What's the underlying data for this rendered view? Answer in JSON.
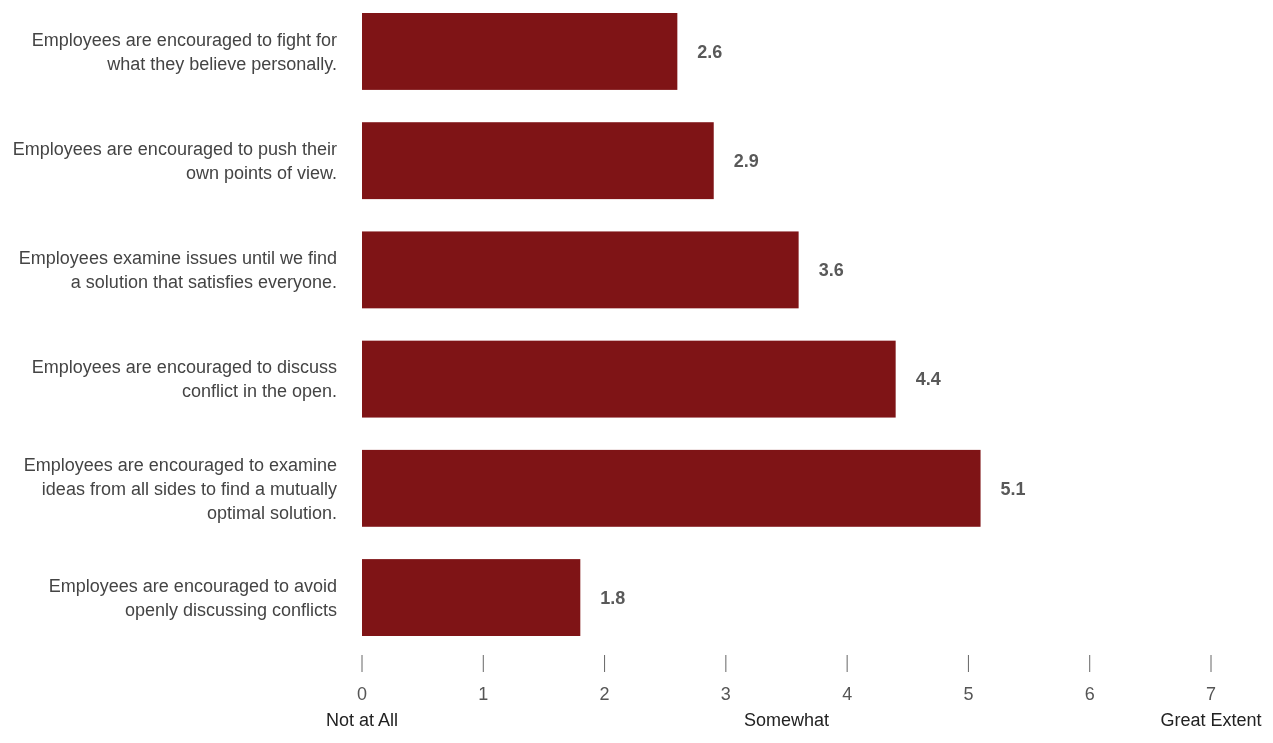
{
  "chart_data": {
    "type": "bar",
    "orientation": "horizontal",
    "categories": [
      "Employees are encouraged to fight for what they believe personally.",
      "Employees are encouraged to push their own points of view.",
      "Employees examine issues until we find a solution that satisfies everyone.",
      "Employees are encouraged to discuss conflict in the open.",
      "Employees are encouraged to examine ideas from all sides to find a mutually optimal solution.",
      "Employees are encouraged to avoid openly discussing conflicts"
    ],
    "values": [
      2.6,
      2.9,
      3.6,
      4.4,
      5.1,
      1.8
    ],
    "color": "#7f1416",
    "xlim": [
      0,
      7
    ],
    "xticks": [
      0,
      1,
      2,
      3,
      4,
      5,
      6,
      7
    ],
    "grid": false,
    "data_labels": true,
    "annotations": [
      "Not at All",
      "Somewhat",
      "Great Extent"
    ]
  }
}
